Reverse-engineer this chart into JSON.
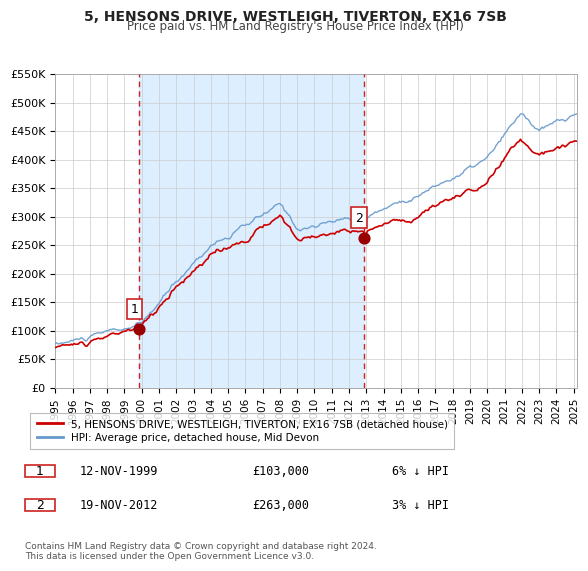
{
  "title": "5, HENSONS DRIVE, WESTLEIGH, TIVERTON, EX16 7SB",
  "subtitle": "Price paid vs. HM Land Registry's House Price Index (HPI)",
  "xlabel": "",
  "ylabel": "",
  "ylim": [
    0,
    550000
  ],
  "xlim_start": 1995.0,
  "xlim_end": 2025.2,
  "yticks": [
    0,
    50000,
    100000,
    150000,
    200000,
    250000,
    300000,
    350000,
    400000,
    450000,
    500000,
    550000
  ],
  "ytick_labels": [
    "£0",
    "£50K",
    "£100K",
    "£150K",
    "£200K",
    "£250K",
    "£300K",
    "£350K",
    "£400K",
    "£450K",
    "£500K",
    "£550K"
  ],
  "sale1_date": 1999.87,
  "sale1_price": 103000,
  "sale2_date": 2012.88,
  "sale2_price": 263000,
  "hpi_color": "#6699cc",
  "price_color": "#cc0000",
  "bg_shade_color": "#ddeeff",
  "grid_color": "#cccccc",
  "marker_color": "#990000",
  "vline_color": "#cc2222",
  "legend1_label": "5, HENSONS DRIVE, WESTLEIGH, TIVERTON, EX16 7SB (detached house)",
  "legend2_label": "HPI: Average price, detached house, Mid Devon",
  "table_row1": [
    "1",
    "12-NOV-1999",
    "£103,000",
    "6% ↓ HPI"
  ],
  "table_row2": [
    "2",
    "19-NOV-2012",
    "£263,000",
    "3% ↓ HPI"
  ],
  "footnote": "Contains HM Land Registry data © Crown copyright and database right 2024.\nThis data is licensed under the Open Government Licence v3.0.",
  "xticks": [
    1995,
    1996,
    1997,
    1998,
    1999,
    2000,
    2001,
    2002,
    2003,
    2004,
    2005,
    2006,
    2007,
    2008,
    2009,
    2010,
    2011,
    2012,
    2013,
    2014,
    2015,
    2016,
    2017,
    2018,
    2019,
    2020,
    2021,
    2022,
    2023,
    2024,
    2025
  ]
}
